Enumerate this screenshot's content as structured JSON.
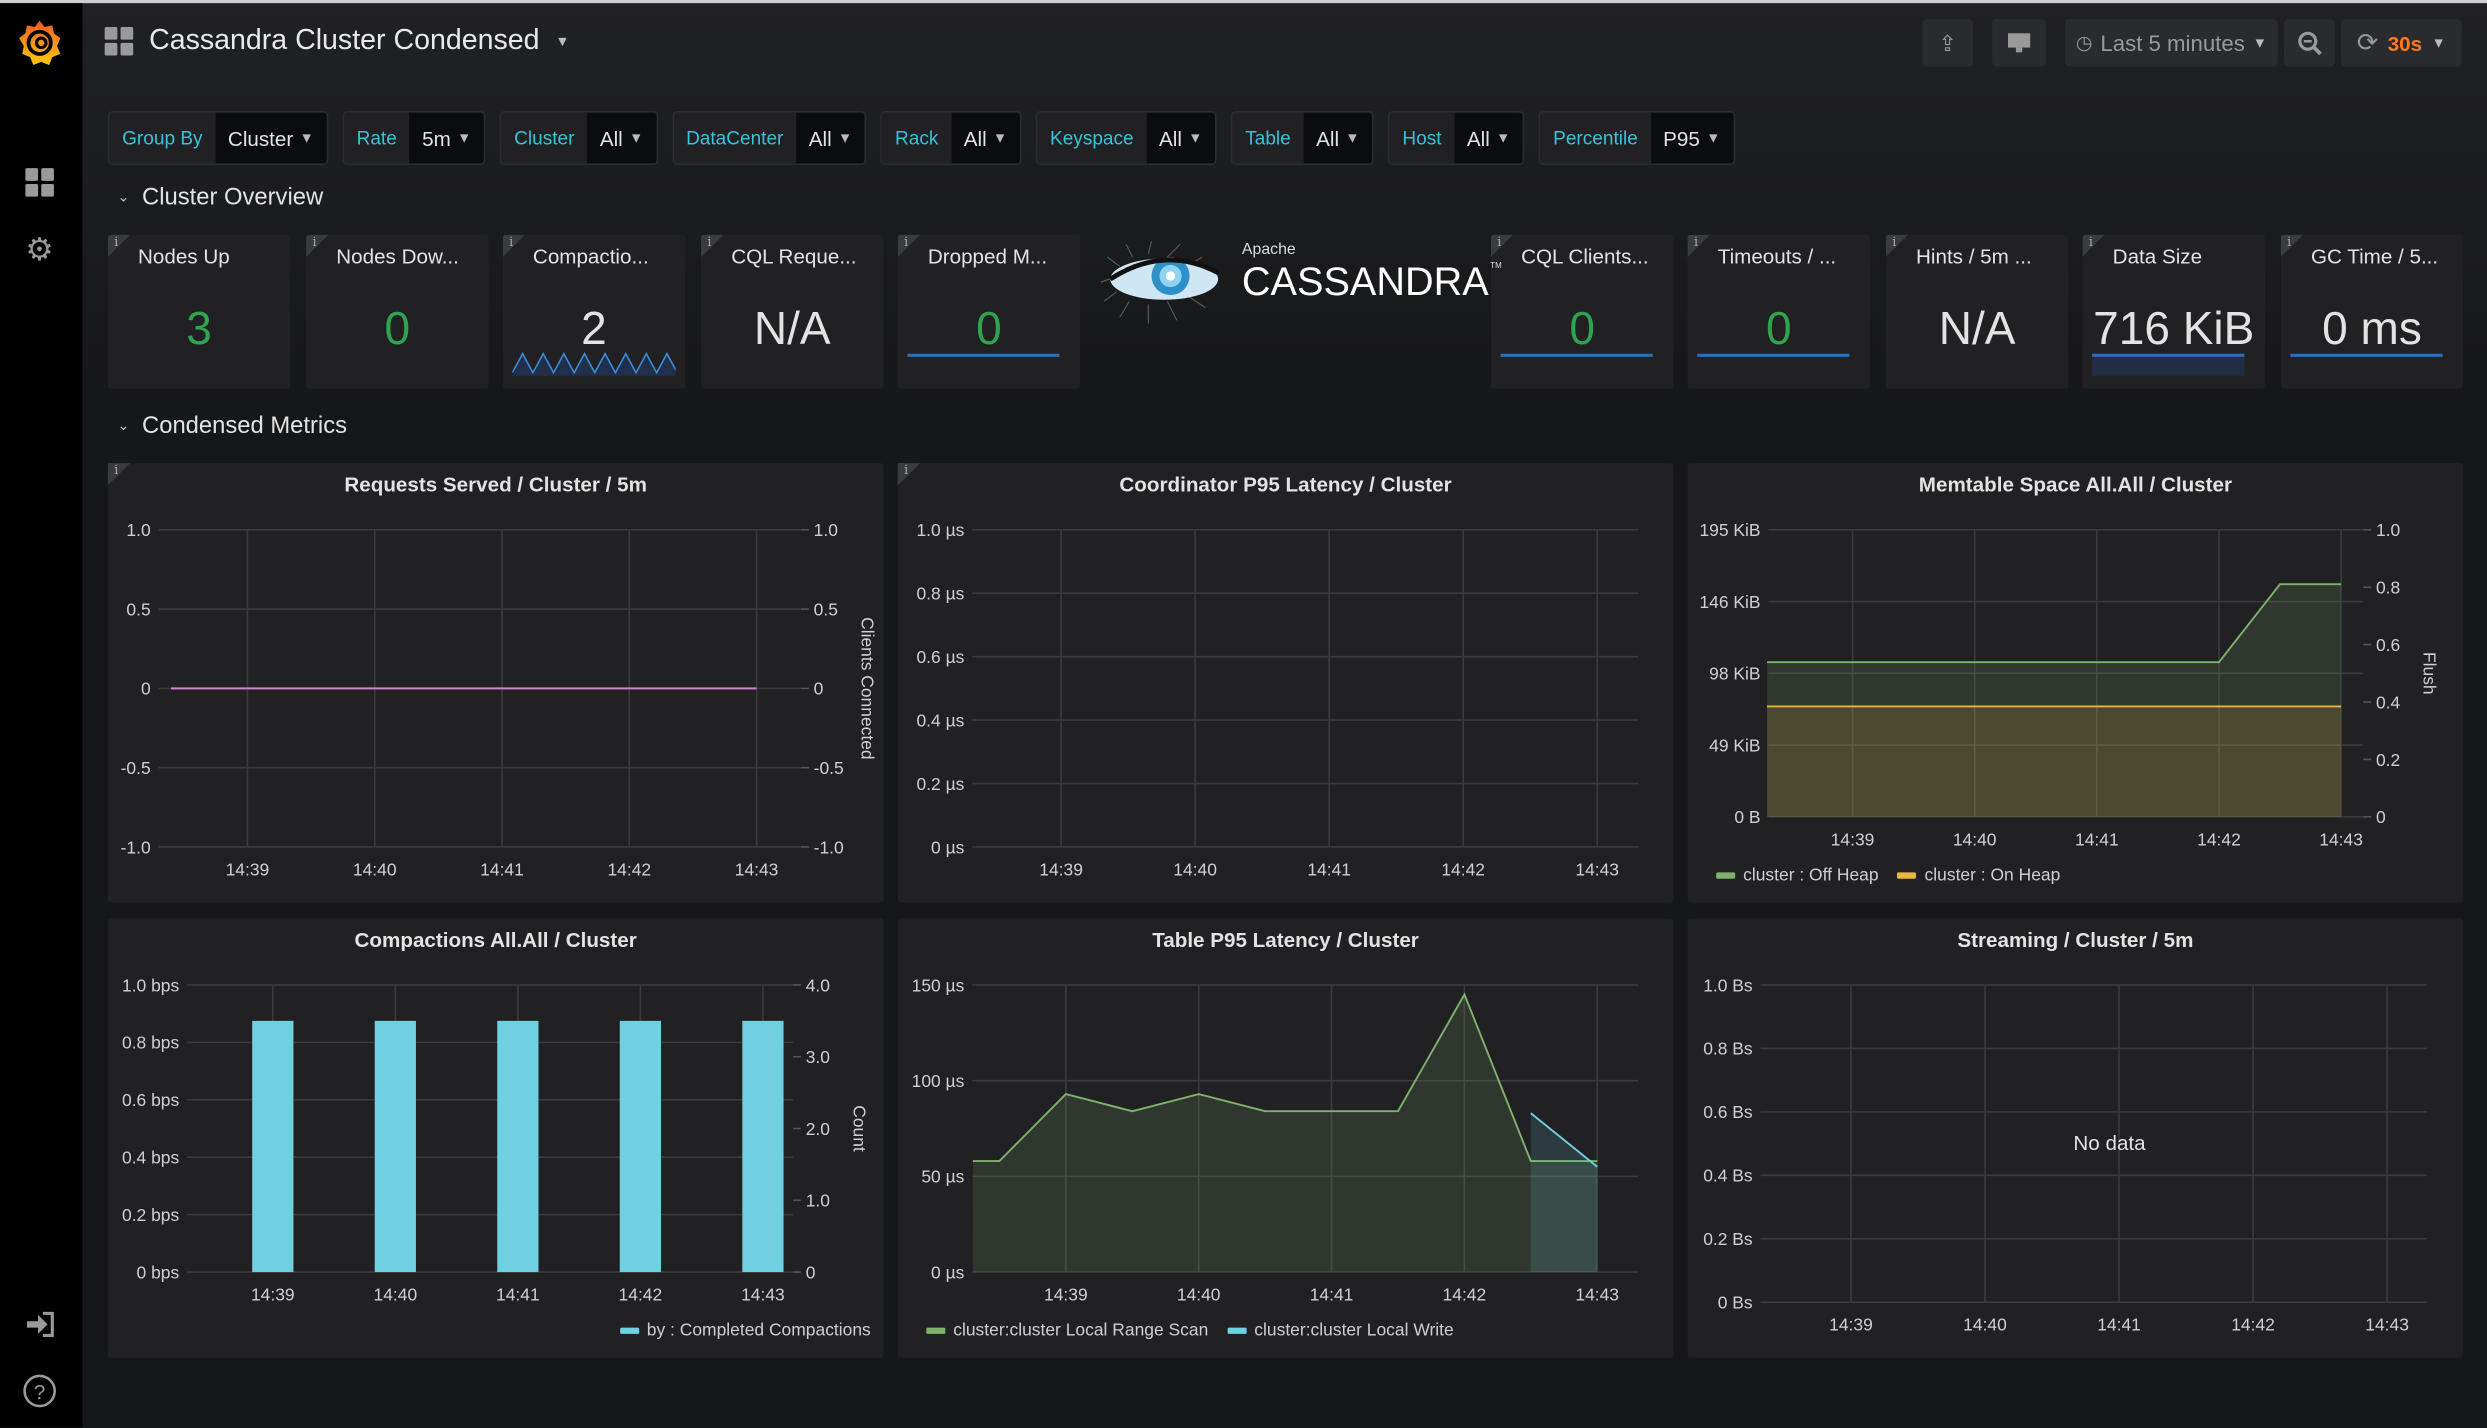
{
  "app": {
    "title": "Cassandra Cluster Condensed",
    "brand_color": "#f46800"
  },
  "sidebar": {
    "items": [
      {
        "icon": "grafana-logo-icon"
      },
      {
        "icon": "dashboards-icon"
      },
      {
        "icon": "gear-icon"
      },
      {
        "icon": "sign-in-icon"
      },
      {
        "icon": "help-icon"
      }
    ]
  },
  "toolbar": {
    "share_icon": "share-icon",
    "cycle_view_icon": "monitor-icon",
    "time_range": "Last 5 minutes",
    "zoom_icon": "zoom-out-icon",
    "refresh_icon": "refresh-icon",
    "refresh_interval": "30s",
    "refresh_color": "#ff7a1a"
  },
  "variables": [
    {
      "label": "Group By",
      "value": "Cluster"
    },
    {
      "label": "Rate",
      "value": "5m"
    },
    {
      "label": "Cluster",
      "value": "All"
    },
    {
      "label": "DataCenter",
      "value": "All"
    },
    {
      "label": "Rack",
      "value": "All"
    },
    {
      "label": "Keyspace",
      "value": "All"
    },
    {
      "label": "Table",
      "value": "All"
    },
    {
      "label": "Host",
      "value": "All"
    },
    {
      "label": "Percentile",
      "value": "P95"
    }
  ],
  "rows": {
    "overview": "Cluster Overview",
    "condensed": "Condensed Metrics"
  },
  "stats": [
    {
      "title": "Nodes Up",
      "value": "3",
      "color": "#2ea44f",
      "spark": "none"
    },
    {
      "title": "Nodes Dow...",
      "value": "0",
      "color": "#2ea44f",
      "spark": "none"
    },
    {
      "title": "Compactio...",
      "value": "2",
      "color": "#e3e3e3",
      "spark": "zigzag"
    },
    {
      "title": "CQL Reque...",
      "value": "N/A",
      "color": "#e3e3e3",
      "spark": "none"
    },
    {
      "title": "Dropped M...",
      "value": "0",
      "color": "#2ea44f",
      "spark": "flat"
    },
    {
      "title": "CQL Clients...",
      "value": "0",
      "color": "#2ea44f",
      "spark": "flat"
    },
    {
      "title": "Timeouts / ...",
      "value": "0",
      "color": "#2ea44f",
      "spark": "flat"
    },
    {
      "title": "Hints / 5m ...",
      "value": "N/A",
      "color": "#e3e3e3",
      "spark": "none"
    },
    {
      "title": "Data Size",
      "value": "716 KiB",
      "color": "#e3e3e3",
      "spark": "filled"
    },
    {
      "title": "GC Time / 5...",
      "value": "0 ms",
      "color": "#e3e3e3",
      "spark": "flat"
    }
  ],
  "logo": {
    "top": "Apache",
    "name": "CASSANDRA",
    "tm": "TM"
  },
  "chart_data": [
    {
      "type": "line",
      "title": "Requests Served / Cluster / 5m",
      "x_ticks": [
        "14:39",
        "14:40",
        "14:41",
        "14:42",
        "14:43"
      ],
      "y_ticks": [
        "1.0",
        "0.5",
        "0",
        "-0.5",
        "-1.0"
      ],
      "y_range": [
        -1,
        1
      ],
      "y2_ticks": [
        "1.0",
        "0.5",
        "0",
        "-0.5",
        "-1.0"
      ],
      "y2_label": "Clients Connected",
      "grid": true,
      "series": [
        {
          "color": "#d683ce",
          "points": [
            [
              "14:38:24",
              0
            ],
            [
              "14:43:00",
              0
            ]
          ]
        }
      ]
    },
    {
      "type": "line",
      "title": "Coordinator P95 Latency / Cluster",
      "x_ticks": [
        "14:39",
        "14:40",
        "14:41",
        "14:42",
        "14:43"
      ],
      "y_ticks": [
        "1.0 µs",
        "0.8 µs",
        "0.6 µs",
        "0.4 µs",
        "0.2 µs",
        "0 µs"
      ],
      "y_range": [
        0,
        1
      ],
      "grid": true,
      "series": []
    },
    {
      "type": "area",
      "title": "Memtable Space All.All / Cluster",
      "x_ticks": [
        "14:39",
        "14:40",
        "14:41",
        "14:42",
        "14:43"
      ],
      "y_ticks": [
        "195 KiB",
        "146 KiB",
        "98 KiB",
        "49 KiB",
        "0 B"
      ],
      "y_range": [
        0,
        195
      ],
      "y_unit": "KiB",
      "y2_ticks": [
        "1.0",
        "0.8",
        "0.6",
        "0.4",
        "0.2",
        "0"
      ],
      "y2_label": "Flush",
      "grid": true,
      "legend": "bottom-left",
      "series": [
        {
          "name": "cluster : Off Heap",
          "color": "#7eb26d",
          "points": [
            [
              "14:38:18",
              105
            ],
            [
              "14:42:00",
              105
            ],
            [
              "14:42:30",
              158
            ],
            [
              "14:43:00",
              158
            ]
          ]
        },
        {
          "name": "cluster : On Heap",
          "color": "#eab839",
          "points": [
            [
              "14:38:18",
              75
            ],
            [
              "14:43:00",
              75
            ]
          ]
        }
      ]
    },
    {
      "type": "bar",
      "title": "Compactions All.All / Cluster",
      "x_ticks": [
        "14:39",
        "14:40",
        "14:41",
        "14:42",
        "14:43"
      ],
      "y_ticks": [
        "1.0 bps",
        "0.8 bps",
        "0.6 bps",
        "0.4 bps",
        "0.2 bps",
        "0 bps"
      ],
      "y_range": [
        0,
        1
      ],
      "y2_ticks": [
        "4.0",
        "3.0",
        "2.0",
        "1.0",
        "0"
      ],
      "y2_label": "Count",
      "grid": true,
      "legend": "bottom-right",
      "series": [
        {
          "name": "by : Completed Compactions",
          "color": "#6ed0e0",
          "points": [
            [
              "14:39:00",
              0.875
            ],
            [
              "14:40:00",
              0.875
            ],
            [
              "14:41:00",
              0.875
            ],
            [
              "14:42:00",
              0.875
            ],
            [
              "14:43:00",
              0.875
            ]
          ]
        }
      ]
    },
    {
      "type": "area",
      "title": "Table P95 Latency / Cluster",
      "x_ticks": [
        "14:39",
        "14:40",
        "14:41",
        "14:42",
        "14:43"
      ],
      "y_ticks": [
        "150 µs",
        "100 µs",
        "50 µs",
        "0 µs"
      ],
      "y_range": [
        0,
        150
      ],
      "y_unit": "µs",
      "grid": true,
      "legend": "bottom-left",
      "series": [
        {
          "name": "cluster:cluster Local Range Scan",
          "color": "#7eb26d",
          "points": [
            [
              "14:38:18",
              58
            ],
            [
              "14:38:30",
              58
            ],
            [
              "14:39:00",
              93
            ],
            [
              "14:39:30",
              84
            ],
            [
              "14:40:00",
              93
            ],
            [
              "14:40:30",
              84
            ],
            [
              "14:41:30",
              84
            ],
            [
              "14:42:00",
              145
            ],
            [
              "14:42:30",
              58
            ],
            [
              "14:43:00",
              58
            ]
          ]
        },
        {
          "name": "cluster:cluster Local Write",
          "color": "#6ed0e0",
          "points": [
            [
              "14:42:30",
              83
            ],
            [
              "14:43:00",
              55
            ]
          ]
        }
      ]
    },
    {
      "type": "line",
      "title": "Streaming / Cluster / 5m",
      "x_ticks": [
        "14:39",
        "14:40",
        "14:41",
        "14:42",
        "14:43"
      ],
      "y_ticks": [
        "1.0 Bs",
        "0.8 Bs",
        "0.6 Bs",
        "0.4 Bs",
        "0.2 Bs",
        "0 Bs"
      ],
      "y_range": [
        0,
        1
      ],
      "grid": true,
      "series": [],
      "no_data": "No data"
    }
  ]
}
